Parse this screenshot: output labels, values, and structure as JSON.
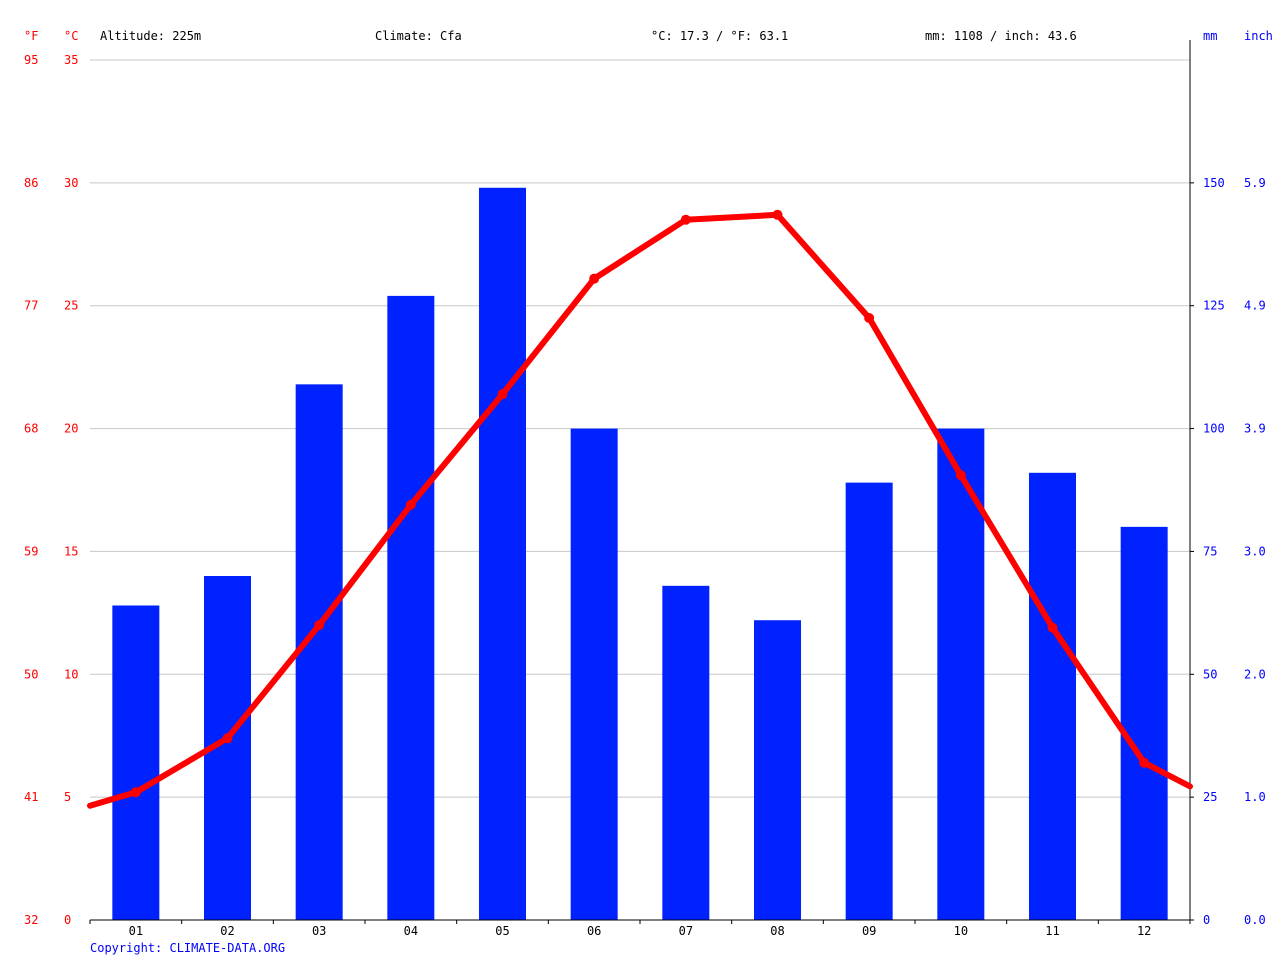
{
  "header": {
    "fahrenheit_unit": "°F",
    "celsius_unit": "°C",
    "altitude": "Altitude: 225m",
    "climate": "Climate: Cfa",
    "temp_summary": "°C: 17.3 / °F: 63.1",
    "precip_summary": "mm: 1108 / inch: 43.6",
    "mm_unit": "mm",
    "inch_unit": "inch"
  },
  "footer": {
    "copyright": "Copyright: CLIMATE-DATA.ORG"
  },
  "colors": {
    "bars": "#0022ff",
    "line": "#ff0000",
    "grid": "#c8c8c8",
    "axis": "#000000",
    "left_labels": "#ff0000",
    "right_labels": "#0000ff"
  },
  "chart_data": {
    "type": "bar+line",
    "categories": [
      "01",
      "02",
      "03",
      "04",
      "05",
      "06",
      "07",
      "08",
      "09",
      "10",
      "11",
      "12"
    ],
    "series": [
      {
        "type": "bar",
        "axis": "right",
        "unit": "mm",
        "values": [
          64,
          70,
          109,
          127,
          149,
          100,
          68,
          61,
          89,
          100,
          91,
          80
        ]
      },
      {
        "type": "line",
        "axis": "left",
        "unit": "°C",
        "values": [
          5.2,
          7.4,
          12.0,
          16.9,
          21.4,
          26.1,
          28.5,
          28.7,
          24.5,
          18.1,
          11.9,
          6.4
        ]
      }
    ],
    "left_axis_celsius": {
      "ylim": [
        0,
        35
      ],
      "ticks": [
        "0",
        "5",
        "10",
        "15",
        "20",
        "25",
        "30",
        "35"
      ]
    },
    "left_axis_fahrenheit": {
      "ticks": [
        "32",
        "41",
        "50",
        "59",
        "68",
        "77",
        "86",
        "95"
      ]
    },
    "right_axis_mm": {
      "ylim": [
        0,
        175
      ],
      "ticks": [
        "0",
        "25",
        "50",
        "75",
        "100",
        "125",
        "150"
      ]
    },
    "right_axis_inch": {
      "ticks": [
        "0.0",
        "1.0",
        "2.0",
        "3.0",
        "3.9",
        "4.9",
        "5.9"
      ]
    },
    "grid": true
  }
}
